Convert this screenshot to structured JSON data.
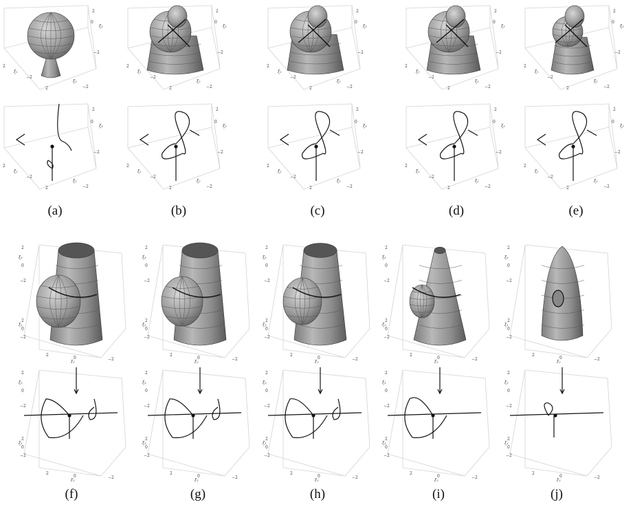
{
  "figure": {
    "captions": [
      "(a)",
      "(b)",
      "(c)",
      "(d)",
      "(e)",
      "(f)",
      "(g)",
      "(h)",
      "(i)",
      "(j)"
    ],
    "axis_ticks": {
      "pos": "2",
      "zero": "0",
      "neg": "−2"
    },
    "axis_labels": {
      "a": "ξ₁",
      "b": "ξ₂",
      "c": "ξ₃"
    }
  }
}
